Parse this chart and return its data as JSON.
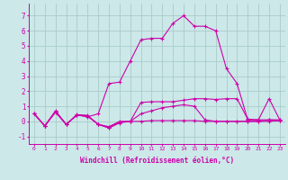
{
  "xlabel": "Windchill (Refroidissement éolien,°C)",
  "bg_color": "#cce8e8",
  "grid_color": "#aacccc",
  "line_color": "#cc00aa",
  "xlim": [
    -0.5,
    23.5
  ],
  "ylim": [
    -1.5,
    7.8
  ],
  "xticks": [
    0,
    1,
    2,
    3,
    4,
    5,
    6,
    7,
    8,
    9,
    10,
    11,
    12,
    13,
    14,
    15,
    16,
    17,
    18,
    19,
    20,
    21,
    22,
    23
  ],
  "yticks": [
    -1,
    0,
    1,
    2,
    3,
    4,
    5,
    6,
    7
  ],
  "lines": [
    [
      0.5,
      -0.3,
      0.7,
      -0.2,
      0.45,
      0.4,
      -0.2,
      -0.45,
      -0.1,
      0.0,
      1.25,
      1.3,
      1.3,
      1.3,
      1.4,
      1.5,
      1.5,
      1.45,
      1.5,
      1.5,
      0.15,
      0.1,
      1.5,
      0.1
    ],
    [
      0.5,
      -0.3,
      0.6,
      -0.2,
      0.4,
      0.35,
      -0.2,
      -0.4,
      -0.05,
      0.0,
      0.0,
      0.05,
      0.05,
      0.05,
      0.05,
      0.05,
      0.0,
      0.0,
      0.0,
      0.0,
      0.0,
      0.0,
      0.0,
      0.05
    ],
    [
      0.5,
      -0.3,
      0.65,
      -0.2,
      0.42,
      0.35,
      -0.2,
      -0.35,
      0.0,
      0.0,
      0.5,
      0.7,
      0.9,
      1.0,
      1.1,
      1.0,
      0.1,
      0.0,
      0.0,
      0.0,
      0.0,
      0.0,
      0.1,
      0.05
    ],
    [
      0.5,
      -0.3,
      0.65,
      -0.2,
      0.42,
      0.3,
      0.5,
      2.5,
      2.6,
      4.0,
      5.4,
      5.5,
      5.5,
      6.5,
      7.0,
      6.3,
      6.3,
      6.0,
      3.5,
      2.5,
      0.1,
      0.1,
      0.1,
      0.1
    ]
  ]
}
